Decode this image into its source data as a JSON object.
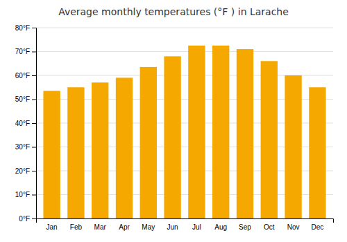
{
  "chart_data": {
    "type": "bar",
    "title": "Average monthly temperatures (°F ) in Larache",
    "categories": [
      "Jan",
      "Feb",
      "Mar",
      "Apr",
      "May",
      "Jun",
      "Jul",
      "Aug",
      "Sep",
      "Oct",
      "Nov",
      "Dec"
    ],
    "values": [
      53.5,
      55.0,
      57.0,
      59.0,
      63.5,
      68.0,
      72.5,
      72.5,
      71.0,
      66.0,
      60.0,
      55.0
    ],
    "color": "#F5A800",
    "ylim": [
      0,
      80
    ],
    "yticks": [
      {
        "value": 0,
        "label": "0°F"
      },
      {
        "value": 10,
        "label": "10°F"
      },
      {
        "value": 20,
        "label": "20°F"
      },
      {
        "value": 30,
        "label": "30°F"
      },
      {
        "value": 40,
        "label": "40°F"
      },
      {
        "value": 50,
        "label": "50°F"
      },
      {
        "value": 60,
        "label": "60°F"
      },
      {
        "value": 70,
        "label": "70°F"
      },
      {
        "value": 80,
        "label": "80°F"
      }
    ],
    "grid": true
  }
}
